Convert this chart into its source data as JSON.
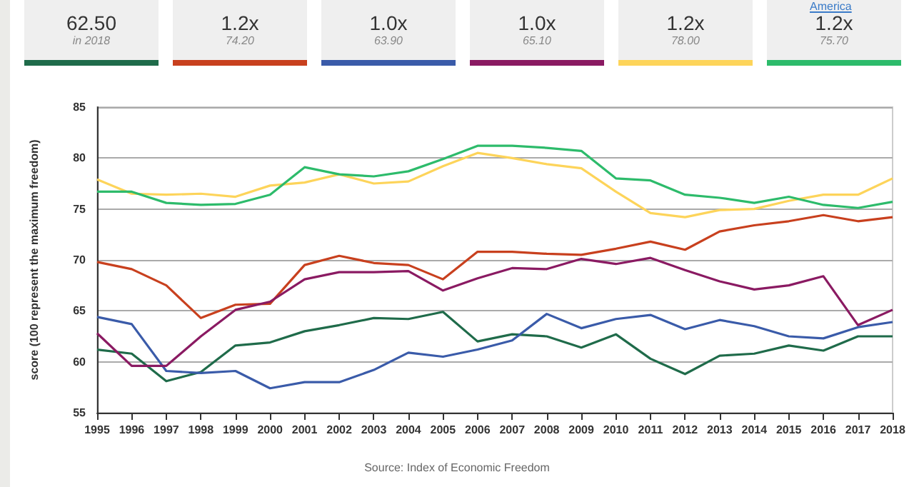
{
  "chart_data": {
    "type": "line",
    "ylabel": "score (100 represent the maximum freedom)",
    "categories": [
      "1995",
      "1996",
      "1997",
      "1998",
      "1999",
      "2000",
      "2001",
      "2002",
      "2003",
      "2004",
      "2005",
      "2006",
      "2007",
      "2008",
      "2009",
      "2010",
      "2011",
      "2012",
      "2013",
      "2014",
      "2015",
      "2016",
      "2017",
      "2018"
    ],
    "series": [
      {
        "color": "#1f6b4a",
        "values": [
          61.2,
          60.8,
          58.1,
          59.0,
          61.6,
          61.9,
          63.0,
          63.6,
          64.3,
          64.2,
          64.9,
          62.0,
          62.7,
          62.5,
          61.4,
          62.7,
          60.3,
          58.8,
          60.6,
          60.8,
          61.6,
          61.1,
          62.5,
          62.5
        ]
      },
      {
        "color": "#c8401e",
        "values": [
          69.8,
          69.1,
          67.5,
          64.3,
          65.6,
          65.7,
          69.5,
          70.4,
          69.7,
          69.5,
          68.1,
          70.8,
          70.8,
          70.6,
          70.5,
          71.1,
          71.8,
          71.0,
          72.8,
          73.4,
          73.8,
          74.4,
          73.8,
          74.2
        ]
      },
      {
        "color": "#3a5ba9",
        "values": [
          64.4,
          63.7,
          59.1,
          58.9,
          59.1,
          57.4,
          58.0,
          58.0,
          59.2,
          60.9,
          60.5,
          61.2,
          62.1,
          64.7,
          63.3,
          64.2,
          64.6,
          63.2,
          64.1,
          63.5,
          62.5,
          62.3,
          63.4,
          63.9
        ]
      },
      {
        "color": "#8a1a62",
        "values": [
          62.8,
          59.6,
          59.6,
          62.5,
          65.1,
          65.9,
          68.1,
          68.8,
          68.8,
          68.9,
          67.0,
          68.2,
          69.2,
          69.1,
          70.1,
          69.6,
          70.2,
          69.0,
          67.9,
          67.1,
          67.5,
          68.4,
          63.6,
          65.1
        ]
      },
      {
        "color": "#fdd45a",
        "values": [
          77.9,
          76.5,
          76.4,
          76.5,
          76.2,
          77.3,
          77.6,
          78.4,
          77.5,
          77.7,
          79.2,
          80.5,
          80.0,
          79.4,
          79.0,
          76.7,
          74.6,
          74.2,
          74.9,
          75.0,
          75.8,
          76.4,
          76.4,
          78.0
        ]
      },
      {
        "color": "#2dbb6b",
        "values": [
          76.7,
          76.7,
          75.6,
          75.4,
          75.5,
          76.4,
          79.1,
          78.4,
          78.2,
          78.7,
          79.9,
          81.2,
          81.2,
          81.0,
          80.7,
          78.0,
          77.8,
          76.4,
          76.1,
          75.6,
          76.2,
          75.4,
          75.1,
          75.7
        ]
      }
    ],
    "ylim": [
      55,
      85
    ],
    "yticks": [
      55,
      60,
      65,
      70,
      75,
      80,
      85
    ],
    "grid": "y",
    "marker": "none",
    "line_style": "solid",
    "annotations": [
      "62.50",
      "in 2018",
      "1.2x",
      "74.20",
      "1.0x",
      "63.90",
      "1.0x",
      "65.10",
      "1.2x",
      "78.00",
      "1.2x",
      "75.70",
      "America",
      "Source: Index of Economic Freedom"
    ]
  }
}
